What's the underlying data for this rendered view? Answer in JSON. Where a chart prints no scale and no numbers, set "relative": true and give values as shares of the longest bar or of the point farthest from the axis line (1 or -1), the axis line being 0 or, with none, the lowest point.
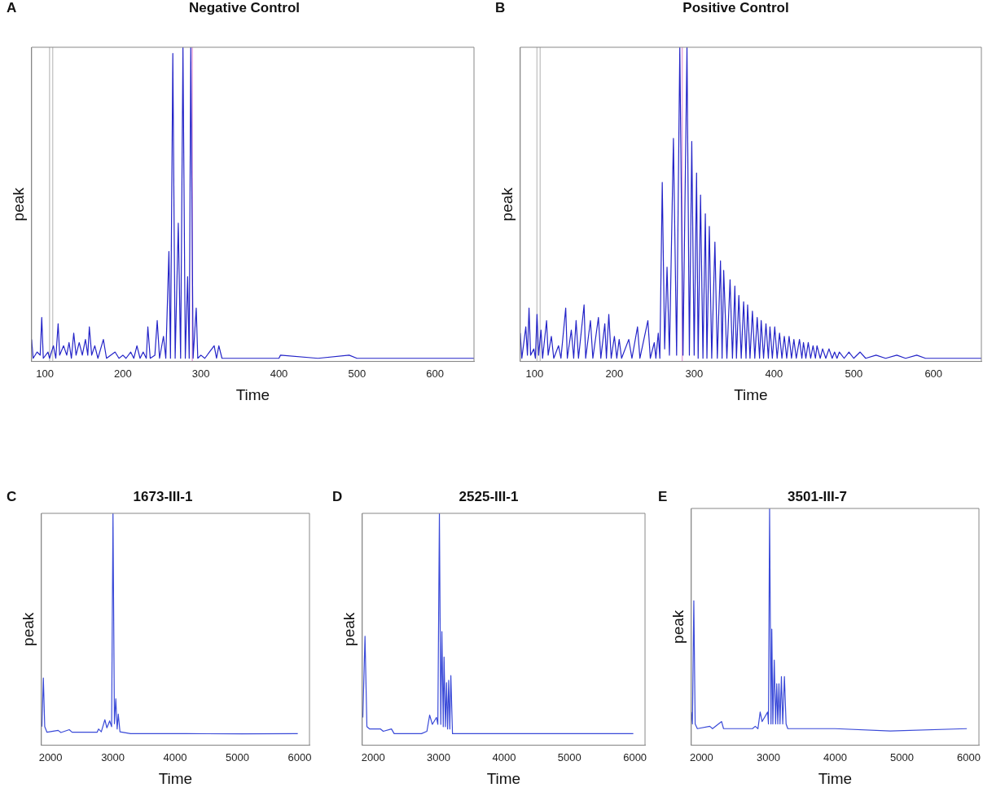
{
  "chart_data": [
    {
      "type": "line",
      "title": "Negative Control",
      "annotations": [
        "A"
      ],
      "xlabel": "Time",
      "ylabel": "peak",
      "relative": true,
      "xlim": [
        83,
        650
      ],
      "xticks": [
        100,
        200,
        300,
        400,
        500,
        600
      ],
      "grid": false,
      "legend": false,
      "ref_lines": [
        {
          "axis": "x",
          "value": 106,
          "color": "#c8c8c8"
        },
        {
          "axis": "x",
          "value": 110,
          "color": "#c8c8c8"
        },
        {
          "axis": "x",
          "value": 289,
          "color": "#e8a8dc"
        }
      ],
      "series": [
        {
          "color": "#2424c8",
          "x": [
            83,
            85,
            90,
            94,
            96,
            98,
            104,
            106,
            111,
            114,
            117,
            119,
            124,
            128,
            131,
            134,
            137,
            140,
            144,
            148,
            152,
            155,
            157,
            160,
            164,
            168,
            175,
            179,
            190,
            195,
            200,
            204,
            210,
            214,
            218,
            222,
            226,
            230,
            232,
            235,
            241,
            244,
            247,
            252,
            255,
            259,
            261,
            264,
            267,
            271,
            274,
            277,
            280,
            283,
            285,
            287,
            290,
            294,
            296,
            300,
            305,
            317,
            320,
            323,
            327,
            340,
            345,
            370,
            400,
            402,
            450,
            490,
            500,
            550,
            600,
            650
          ],
          "values": [
            0.07,
            0.01,
            0.03,
            0.02,
            0.14,
            0.01,
            0.03,
            0.01,
            0.05,
            0.01,
            0.12,
            0.02,
            0.05,
            0.02,
            0.06,
            0.01,
            0.09,
            0.02,
            0.06,
            0.02,
            0.07,
            0.02,
            0.11,
            0.02,
            0.05,
            0.01,
            0.07,
            0.01,
            0.03,
            0.01,
            0.02,
            0.01,
            0.03,
            0.01,
            0.05,
            0.01,
            0.03,
            0.01,
            0.11,
            0.01,
            0.02,
            0.13,
            0.01,
            0.08,
            0.01,
            0.35,
            0.01,
            0.98,
            0.01,
            0.44,
            0.01,
            1,
            0.01,
            0.27,
            0.01,
            1,
            0.01,
            0.17,
            0.01,
            0.02,
            0.01,
            0.05,
            0.01,
            0.05,
            0.01,
            0.01,
            0.01,
            0.01,
            0.01,
            0.02,
            0.01,
            0.02,
            0.01,
            0.01,
            0.01,
            0.01
          ]
        }
      ]
    },
    {
      "type": "line",
      "title": "Positive Control",
      "annotations": [
        "B"
      ],
      "xlabel": "Time",
      "ylabel": "peak",
      "relative": true,
      "xlim": [
        82,
        660
      ],
      "xticks": [
        100,
        200,
        300,
        400,
        500,
        600
      ],
      "grid": false,
      "legend": false,
      "ref_lines": [
        {
          "axis": "x",
          "value": 103,
          "color": "#c8c8c8"
        },
        {
          "axis": "x",
          "value": 107,
          "color": "#c8c8c8"
        },
        {
          "axis": "x",
          "value": 285,
          "color": "#e8a8dc"
        }
      ],
      "series": [
        {
          "color": "#2424c8",
          "x": [
            82,
            84,
            89,
            91,
            93,
            95,
            99,
            101,
            103,
            105,
            108,
            110,
            115,
            117,
            121,
            124,
            130,
            133,
            139,
            141,
            146,
            149,
            152,
            155,
            162,
            164,
            170,
            173,
            180,
            183,
            188,
            190,
            193,
            196,
            200,
            203,
            206,
            209,
            218,
            222,
            229,
            232,
            242,
            245,
            250,
            252,
            255,
            257,
            260,
            263,
            266,
            269,
            274,
            278,
            282,
            286,
            291,
            294,
            297,
            300,
            303,
            305,
            308,
            311,
            314,
            316,
            319,
            322,
            326,
            329,
            333,
            335,
            337,
            341,
            345,
            348,
            351,
            353,
            356,
            359,
            362,
            365,
            367,
            370,
            373,
            376,
            379,
            382,
            384,
            387,
            390,
            393,
            395,
            398,
            401,
            404,
            407,
            410,
            413,
            416,
            419,
            422,
            425,
            428,
            432,
            435,
            437,
            440,
            443,
            446,
            449,
            452,
            454,
            458,
            461,
            465,
            469,
            473,
            476,
            479,
            482,
            488,
            494,
            500,
            508,
            515,
            528,
            540,
            554,
            565,
            579,
            590,
            603,
            660
          ],
          "values": [
            0.09,
            0.01,
            0.11,
            0.02,
            0.17,
            0.02,
            0.04,
            0.01,
            0.15,
            0.02,
            0.1,
            0.01,
            0.13,
            0.02,
            0.08,
            0.01,
            0.05,
            0.01,
            0.17,
            0.01,
            0.1,
            0.01,
            0.13,
            0.01,
            0.18,
            0.01,
            0.13,
            0.01,
            0.14,
            0.01,
            0.12,
            0.01,
            0.15,
            0.01,
            0.08,
            0.01,
            0.07,
            0.01,
            0.07,
            0.01,
            0.11,
            0.01,
            0.13,
            0.01,
            0.06,
            0.01,
            0.09,
            0.01,
            0.57,
            0.04,
            0.3,
            0.02,
            0.71,
            0.02,
            1,
            0.02,
            1,
            0.02,
            0.7,
            0.02,
            0.6,
            0.01,
            0.53,
            0.01,
            0.47,
            0.01,
            0.43,
            0.01,
            0.38,
            0.01,
            0.32,
            0.01,
            0.29,
            0.01,
            0.26,
            0.01,
            0.24,
            0.01,
            0.21,
            0.01,
            0.19,
            0.01,
            0.18,
            0.01,
            0.16,
            0.01,
            0.14,
            0.01,
            0.13,
            0.01,
            0.12,
            0.01,
            0.11,
            0.01,
            0.11,
            0.01,
            0.09,
            0.01,
            0.08,
            0.01,
            0.08,
            0.01,
            0.07,
            0.01,
            0.07,
            0.01,
            0.06,
            0.01,
            0.06,
            0.01,
            0.05,
            0.01,
            0.05,
            0.01,
            0.04,
            0.01,
            0.04,
            0.01,
            0.03,
            0.01,
            0.03,
            0.01,
            0.03,
            0.01,
            0.03,
            0.01,
            0.02,
            0.01,
            0.02,
            0.01,
            0.02,
            0.01,
            0.01,
            0.01
          ]
        }
      ]
    },
    {
      "type": "line",
      "title": "1673-III-1",
      "annotations": [
        "C"
      ],
      "xlabel": "Time",
      "ylabel": "peak",
      "relative": true,
      "xlim": [
        1852,
        6157
      ],
      "xticks": [
        2000,
        3000,
        4000,
        5000,
        6000
      ],
      "grid": false,
      "legend": false,
      "series": [
        {
          "color": "#3a4ad8",
          "x": [
            1861,
            1884,
            1906,
            1942,
            2121,
            2166,
            2300,
            2345,
            2747,
            2770,
            2814,
            2872,
            2904,
            2949,
            2980,
            3002,
            3025,
            3047,
            3069,
            3087,
            3114,
            3284,
            4179,
            5074,
            5969
          ],
          "values": [
            0.08,
            0.29,
            0.08,
            0.056,
            0.064,
            0.055,
            0.067,
            0.056,
            0.056,
            0.07,
            0.058,
            0.11,
            0.075,
            0.105,
            0.08,
            1,
            0.093,
            0.2,
            0.07,
            0.134,
            0.058,
            0.05,
            0.05,
            0.049,
            0.05
          ]
        }
      ]
    },
    {
      "type": "line",
      "title": "2525-III-1",
      "annotations": [
        "D"
      ],
      "xlabel": "Time",
      "ylabel": "peak",
      "relative": true,
      "xlim": [
        1833,
        6154
      ],
      "xticks": [
        2000,
        3000,
        4000,
        5000,
        6000
      ],
      "grid": false,
      "legend": false,
      "series": [
        {
          "color": "#3a4ad8",
          "x": [
            1842,
            1875,
            1904,
            1946,
            2113,
            2154,
            2279,
            2321,
            2738,
            2821,
            2863,
            2904,
            2967,
            2988,
            3012,
            3033,
            3050,
            3071,
            3083,
            3104,
            3121,
            3137,
            3154,
            3171,
            3187,
            3212,
            3279,
            4196,
            5029,
            5975
          ],
          "values": [
            0.12,
            0.47,
            0.08,
            0.07,
            0.07,
            0.06,
            0.07,
            0.05,
            0.05,
            0.06,
            0.13,
            0.09,
            0.12,
            0.09,
            1,
            0.09,
            0.49,
            0.08,
            0.38,
            0.08,
            0.27,
            0.07,
            0.28,
            0.07,
            0.3,
            0.05,
            0.05,
            0.05,
            0.05,
            0.05
          ]
        }
      ]
    },
    {
      "type": "line",
      "title": "3501-III-7",
      "annotations": [
        "E"
      ],
      "xlabel": "Time",
      "ylabel": "peak",
      "relative": true,
      "xlim": [
        1847,
        6152
      ],
      "xticks": [
        2000,
        3000,
        4000,
        5000,
        6000
      ],
      "grid": false,
      "legend": false,
      "series": [
        {
          "color": "#3a4ad8",
          "x": [
            1847,
            1864,
            1885,
            1905,
            1938,
            2124,
            2165,
            2301,
            2330,
            2763,
            2804,
            2845,
            2878,
            2907,
            2990,
            3002,
            3019,
            3040,
            3052,
            3068,
            3089,
            3109,
            3126,
            3142,
            3159,
            3175,
            3196,
            3216,
            3241,
            3266,
            3291,
            3320,
            4000,
            4825,
            5971
          ],
          "values": [
            0.14,
            0.09,
            0.61,
            0.09,
            0.07,
            0.08,
            0.07,
            0.1,
            0.07,
            0.07,
            0.08,
            0.07,
            0.14,
            0.1,
            0.14,
            0.09,
            1,
            0.09,
            0.49,
            0.09,
            0.36,
            0.09,
            0.26,
            0.09,
            0.26,
            0.09,
            0.29,
            0.09,
            0.29,
            0.09,
            0.07,
            0.07,
            0.07,
            0.06,
            0.07
          ]
        }
      ]
    }
  ]
}
